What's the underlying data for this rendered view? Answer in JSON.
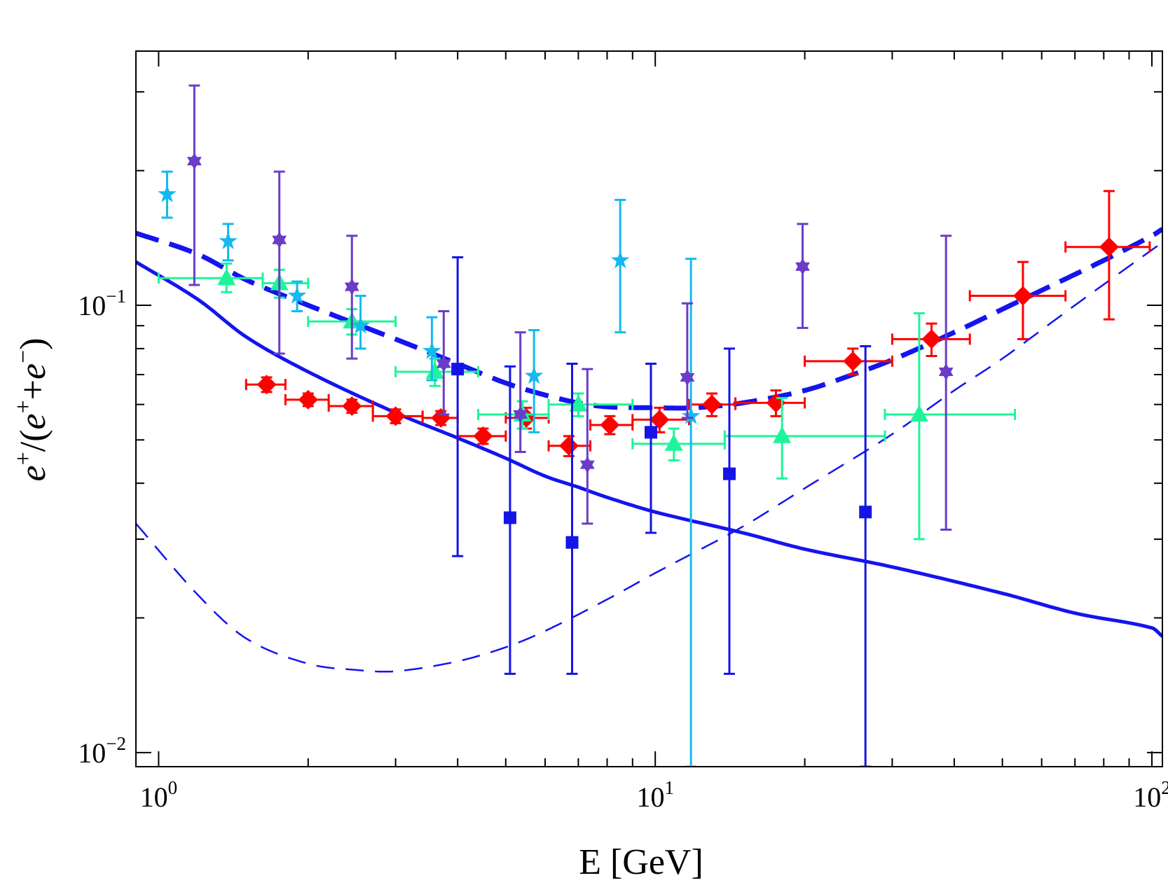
{
  "chart_data": {
    "type": "scatter",
    "title": "",
    "xlabel": "E [GeV]",
    "ylabel": "e⁺/(e⁺+e⁻)",
    "xscale": "log",
    "yscale": "log",
    "xlim": [
      0.9,
      105
    ],
    "ylim": [
      0.0093,
      0.37
    ],
    "x_tick_labels": [
      {
        "value": 1,
        "base": "10",
        "exp": "0"
      },
      {
        "value": 10,
        "base": "10",
        "exp": "1"
      },
      {
        "value": 100,
        "base": "10",
        "exp": "2"
      }
    ],
    "y_tick_labels": [
      {
        "value": 0.01,
        "base": "10",
        "exp": "−2"
      },
      {
        "value": 0.1,
        "base": "10",
        "exp": "−1"
      }
    ],
    "colors": {
      "red_diamond": "#ff0000",
      "green_triangle": "#1ef59a",
      "cyan_star": "#14b9ef",
      "purple_star": "#6a3cc8",
      "blue_square": "#1414e6",
      "curves": "#1414f0"
    },
    "curves": [
      {
        "name": "solid-curve",
        "style": "solid",
        "width": 5,
        "points": [
          [
            0.9,
            0.125
          ],
          [
            1.2,
            0.103
          ],
          [
            1.5,
            0.085
          ],
          [
            2,
            0.071
          ],
          [
            3,
            0.0575
          ],
          [
            4,
            0.0505
          ],
          [
            5,
            0.0455
          ],
          [
            6,
            0.0415
          ],
          [
            7,
            0.0392
          ],
          [
            8,
            0.0372
          ],
          [
            10,
            0.0345
          ],
          [
            15,
            0.031
          ],
          [
            20,
            0.0285
          ],
          [
            30,
            0.026
          ],
          [
            50,
            0.0227
          ],
          [
            70,
            0.0205
          ],
          [
            100,
            0.019
          ],
          [
            105,
            0.0182
          ]
        ]
      },
      {
        "name": "thick-dashed-curve",
        "style": "dashed-thick",
        "width": 7,
        "points": [
          [
            0.9,
            0.145
          ],
          [
            1.2,
            0.13
          ],
          [
            1.5,
            0.114
          ],
          [
            2,
            0.1
          ],
          [
            3,
            0.084
          ],
          [
            4,
            0.074
          ],
          [
            5,
            0.067
          ],
          [
            6,
            0.063
          ],
          [
            7,
            0.0605
          ],
          [
            8,
            0.0593
          ],
          [
            10,
            0.059
          ],
          [
            12,
            0.059
          ],
          [
            15,
            0.0605
          ],
          [
            20,
            0.0645
          ],
          [
            25,
            0.07
          ],
          [
            30,
            0.0755
          ],
          [
            40,
            0.087
          ],
          [
            50,
            0.098
          ],
          [
            60,
            0.108
          ],
          [
            80,
            0.126
          ],
          [
            100,
            0.143
          ],
          [
            105,
            0.148
          ]
        ]
      },
      {
        "name": "thin-dashed-curve",
        "style": "dashed-thin",
        "width": 2.5,
        "points": [
          [
            0.9,
            0.0325
          ],
          [
            1.2,
            0.0225
          ],
          [
            1.5,
            0.018
          ],
          [
            2,
            0.0158
          ],
          [
            2.5,
            0.0153
          ],
          [
            3,
            0.0152
          ],
          [
            4,
            0.016
          ],
          [
            5,
            0.0172
          ],
          [
            6,
            0.0187
          ],
          [
            8,
            0.022
          ],
          [
            10,
            0.0252
          ],
          [
            15,
            0.032
          ],
          [
            20,
            0.039
          ],
          [
            30,
            0.0515
          ],
          [
            40,
            0.0645
          ],
          [
            50,
            0.076
          ],
          [
            70,
            0.1
          ],
          [
            100,
            0.133
          ],
          [
            105,
            0.138
          ]
        ]
      }
    ],
    "series": [
      {
        "name": "red-diamonds",
        "marker": "diamond",
        "color": "#ff0000",
        "points": [
          {
            "x": 1.65,
            "y": 0.0665,
            "xerr": [
              1.5,
              1.8
            ],
            "yerr": [
              0.064,
              0.069
            ]
          },
          {
            "x": 2.0,
            "y": 0.0615,
            "xerr": [
              1.8,
              2.2
            ],
            "yerr": [
              0.0595,
              0.0635
            ]
          },
          {
            "x": 2.45,
            "y": 0.0595,
            "xerr": [
              2.2,
              2.7
            ],
            "yerr": [
              0.0575,
              0.0615
            ]
          },
          {
            "x": 3.0,
            "y": 0.0565,
            "xerr": [
              2.7,
              3.4
            ],
            "yerr": [
              0.0545,
              0.0585
            ]
          },
          {
            "x": 3.7,
            "y": 0.056,
            "xerr": [
              3.4,
              4.0
            ],
            "yerr": [
              0.054,
              0.058
            ]
          },
          {
            "x": 4.5,
            "y": 0.051,
            "xerr": [
              4.0,
              5.0
            ],
            "yerr": [
              0.049,
              0.053
            ]
          },
          {
            "x": 5.5,
            "y": 0.056,
            "xerr": [
              5.0,
              6.1
            ],
            "yerr": [
              0.053,
              0.059
            ]
          },
          {
            "x": 6.7,
            "y": 0.0485,
            "xerr": [
              6.1,
              7.4
            ],
            "yerr": [
              0.046,
              0.051
            ]
          },
          {
            "x": 8.1,
            "y": 0.054,
            "xerr": [
              7.4,
              9.0
            ],
            "yerr": [
              0.0515,
              0.0565
            ]
          },
          {
            "x": 10.2,
            "y": 0.0555,
            "xerr": [
              9.0,
              11.7
            ],
            "yerr": [
              0.052,
              0.059
            ]
          },
          {
            "x": 13.0,
            "y": 0.06,
            "xerr": [
              11.7,
              14.5
            ],
            "yerr": [
              0.0565,
              0.0635
            ]
          },
          {
            "x": 17.5,
            "y": 0.0605,
            "xerr": [
              14.5,
              20.0
            ],
            "yerr": [
              0.0565,
              0.0645
            ]
          },
          {
            "x": 25.0,
            "y": 0.075,
            "xerr": [
              20.0,
              30.0
            ],
            "yerr": [
              0.07,
              0.08
            ]
          },
          {
            "x": 36.0,
            "y": 0.084,
            "xerr": [
              30.0,
              43.0
            ],
            "yerr": [
              0.077,
              0.091
            ]
          },
          {
            "x": 55.0,
            "y": 0.105,
            "xerr": [
              43.0,
              67.0
            ],
            "yerr": [
              0.084,
              0.125
            ]
          },
          {
            "x": 82.0,
            "y": 0.135,
            "xerr": [
              67.0,
              99.0
            ],
            "yerr": [
              0.093,
              0.18
            ]
          }
        ]
      },
      {
        "name": "green-triangles",
        "marker": "triangle",
        "color": "#1ef59a",
        "points": [
          {
            "x": 1.37,
            "y": 0.115,
            "xerr": [
              1.0,
              1.62
            ],
            "yerr": [
              0.107,
              0.124
            ]
          },
          {
            "x": 1.75,
            "y": 0.112,
            "xerr": [
              1.62,
              2.0
            ],
            "yerr": [
              0.104,
              0.12
            ]
          },
          {
            "x": 2.45,
            "y": 0.092,
            "xerr": [
              2.0,
              3.0
            ],
            "yerr": [
              0.086,
              0.098
            ]
          },
          {
            "x": 3.6,
            "y": 0.071,
            "xerr": [
              3.0,
              4.4
            ],
            "yerr": [
              0.066,
              0.076
            ]
          },
          {
            "x": 5.4,
            "y": 0.057,
            "xerr": [
              4.4,
              6.1
            ],
            "yerr": [
              0.053,
              0.061
            ]
          },
          {
            "x": 7.0,
            "y": 0.06,
            "xerr": [
              6.1,
              9.0
            ],
            "yerr": [
              0.0565,
              0.0635
            ]
          },
          {
            "x": 10.9,
            "y": 0.049,
            "xerr": [
              9.0,
              13.8
            ],
            "yerr": [
              0.045,
              0.053
            ]
          },
          {
            "x": 18.0,
            "y": 0.051,
            "xerr": [
              13.8,
              29.0
            ],
            "yerr": [
              0.041,
              0.062
            ]
          },
          {
            "x": 34.0,
            "y": 0.057,
            "xerr": [
              29.0,
              53.0
            ],
            "yerr": [
              0.03,
              0.096
            ]
          }
        ]
      },
      {
        "name": "cyan-stars",
        "marker": "star5",
        "color": "#14b9ef",
        "points": [
          {
            "x": 1.04,
            "y": 0.177,
            "yerr": [
              0.157,
              0.199
            ]
          },
          {
            "x": 1.38,
            "y": 0.139,
            "yerr": [
              0.126,
              0.152
            ]
          },
          {
            "x": 1.9,
            "y": 0.105,
            "yerr": [
              0.097,
              0.113
            ]
          },
          {
            "x": 2.55,
            "y": 0.09,
            "yerr": [
              0.08,
              0.105
            ]
          },
          {
            "x": 3.55,
            "y": 0.079,
            "yerr": [
              0.068,
              0.094
            ]
          },
          {
            "x": 5.7,
            "y": 0.0695,
            "yerr": [
              0.052,
              0.088
            ]
          },
          {
            "x": 8.5,
            "y": 0.126,
            "yerr": [
              0.087,
              0.172
            ]
          },
          {
            "x": 11.8,
            "y": 0.0565,
            "yerr": [
              0.0093,
              0.127
            ]
          }
        ]
      },
      {
        "name": "purple-stars",
        "marker": "star6",
        "color": "#6a3cc8",
        "points": [
          {
            "x": 1.18,
            "y": 0.21,
            "yerr": [
              0.111,
              0.31
            ]
          },
          {
            "x": 1.75,
            "y": 0.14,
            "yerr": [
              0.078,
              0.199
            ]
          },
          {
            "x": 2.45,
            "y": 0.11,
            "yerr": [
              0.076,
              0.143
            ]
          },
          {
            "x": 3.75,
            "y": 0.074,
            "yerr": [
              0.057,
              0.097
            ]
          },
          {
            "x": 5.35,
            "y": 0.057,
            "yerr": [
              0.047,
              0.087
            ]
          },
          {
            "x": 7.3,
            "y": 0.044,
            "yerr": [
              0.0325,
              0.072
            ]
          },
          {
            "x": 11.6,
            "y": 0.069,
            "yerr": [
              0.056,
              0.101
            ]
          },
          {
            "x": 19.8,
            "y": 0.122,
            "yerr": [
              0.089,
              0.152
            ]
          },
          {
            "x": 38.5,
            "y": 0.071,
            "yerr": [
              0.0315,
              0.143
            ]
          }
        ]
      },
      {
        "name": "blue-squares",
        "marker": "square",
        "color": "#1414e6",
        "points": [
          {
            "x": 4.0,
            "y": 0.072,
            "yerr": [
              0.0275,
              0.128
            ]
          },
          {
            "x": 5.1,
            "y": 0.0335,
            "yerr": [
              0.015,
              0.073
            ]
          },
          {
            "x": 6.8,
            "y": 0.0295,
            "yerr": [
              0.015,
              0.074
            ]
          },
          {
            "x": 9.8,
            "y": 0.052,
            "yerr": [
              0.031,
              0.074
            ]
          },
          {
            "x": 14.1,
            "y": 0.042,
            "yerr": [
              0.015,
              0.08
            ]
          },
          {
            "x": 26.5,
            "y": 0.0345,
            "yerr": [
              0.0093,
              0.081
            ]
          }
        ]
      }
    ]
  }
}
